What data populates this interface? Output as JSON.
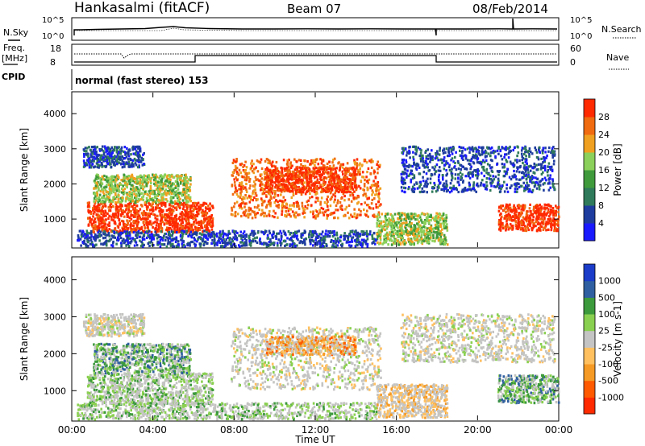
{
  "header": {
    "station": "Hankasalmi (fitACF)",
    "beam": "Beam 07",
    "date": "08/Feb/2014"
  },
  "panels": {
    "nsky_label": "N.Sky",
    "nsearch_label": "N.Search",
    "freq_label_line1": "Freq.",
    "freq_label_line2": "[MHz]",
    "cpid_label": "CPID",
    "nave_label": "Nave",
    "cpid_text": "normal (fast stereo) 153",
    "nsky_ticks": [
      "10^5",
      "10^0"
    ],
    "nsearch_ticks": [
      "10^5",
      "10^0"
    ],
    "freq_ticks": [
      "18",
      "8"
    ],
    "nave_ticks": [
      "60",
      "0"
    ]
  },
  "colors": {
    "power": [
      "#1a1aff",
      "#1e3c9e",
      "#2f7a5a",
      "#3f9a3c",
      "#8bd05a",
      "#f0a020",
      "#f06a10",
      "#ff2a00"
    ],
    "velocity": [
      "#ff2a00",
      "#ff5a00",
      "#f59a25",
      "#ffc060",
      "#c4c4c4",
      "#8ad050",
      "#3c9a3c",
      "#2f5fa0",
      "#1a3cc8"
    ],
    "grey_scatter": "#c4c4c2"
  },
  "chart_data": [
    {
      "type": "heatmap",
      "panel": "power",
      "ylabel": "Slant Range [km]",
      "yticks": [
        "1000",
        "2000",
        "3000",
        "4000"
      ],
      "xlabel": "",
      "xticks": [
        "00:00",
        "04:00",
        "08:00",
        "12:00",
        "16:00",
        "20:00",
        "00:00"
      ],
      "colorbar_label": "Power [dB]",
      "colorbar_ticks": [
        "4",
        "8",
        "12",
        "16",
        "20",
        "24",
        "28"
      ],
      "x_range_hours": [
        0,
        24
      ],
      "y_range_km": [
        200,
        4600
      ],
      "regions": [
        {
          "t0": 0.7,
          "t1": 6.9,
          "r0": 650,
          "r1": 1500,
          "level": 7
        },
        {
          "t0": 1.0,
          "t1": 5.8,
          "r0": 1500,
          "r1": 2300,
          "level": 4
        },
        {
          "t0": 7.8,
          "t1": 15.2,
          "r0": 1050,
          "r1": 2750,
          "level": 6
        },
        {
          "t0": 9.5,
          "t1": 14.0,
          "r0": 1800,
          "r1": 2500,
          "level": 7
        },
        {
          "t0": 0.5,
          "t1": 3.5,
          "r0": 2500,
          "r1": 3100,
          "level": 1
        },
        {
          "t0": 15.0,
          "t1": 18.5,
          "r0": 300,
          "r1": 1200,
          "level": 4
        },
        {
          "t0": 16.2,
          "t1": 23.8,
          "r0": 1800,
          "r1": 3100,
          "level": 1
        },
        {
          "t0": 21.0,
          "t1": 24.0,
          "r0": 700,
          "r1": 1450,
          "level": 7
        },
        {
          "t0": 0.2,
          "t1": 15.0,
          "r0": 250,
          "r1": 700,
          "level": 1
        }
      ]
    },
    {
      "type": "heatmap",
      "panel": "velocity",
      "ylabel": "Slant Range [km]",
      "yticks": [
        "1000",
        "2000",
        "3000",
        "4000"
      ],
      "xlabel": "Time UT",
      "xticks": [
        "00:00",
        "04:00",
        "08:00",
        "12:00",
        "16:00",
        "20:00",
        "00:00"
      ],
      "colorbar_label": "Velocity [m s-1]",
      "colorbar_ticks": [
        "1000",
        "500",
        "100",
        "25",
        "-25",
        "-100",
        "-500",
        "-1000"
      ],
      "x_range_hours": [
        0,
        24
      ],
      "y_range_km": [
        200,
        4600
      ],
      "regions": [
        {
          "t0": 0.7,
          "t1": 6.9,
          "r0": 650,
          "r1": 1500,
          "level": 5
        },
        {
          "t0": 1.0,
          "t1": 5.8,
          "r0": 1500,
          "r1": 2300,
          "level": 6
        },
        {
          "t0": 7.8,
          "t1": 15.2,
          "r0": 1050,
          "r1": 2750,
          "level": 4
        },
        {
          "t0": 9.5,
          "t1": 14.0,
          "r0": 2000,
          "r1": 2500,
          "level": 2
        },
        {
          "t0": 0.5,
          "t1": 3.5,
          "r0": 2500,
          "r1": 3100,
          "level": 4
        },
        {
          "t0": 15.0,
          "t1": 18.5,
          "r0": 300,
          "r1": 1200,
          "level": 3
        },
        {
          "t0": 16.2,
          "t1": 23.8,
          "r0": 1800,
          "r1": 3100,
          "level": 4
        },
        {
          "t0": 21.0,
          "t1": 24.0,
          "r0": 700,
          "r1": 1450,
          "level": 6
        },
        {
          "t0": 0.2,
          "t1": 15.0,
          "r0": 250,
          "r1": 700,
          "level": 5
        }
      ]
    }
  ]
}
